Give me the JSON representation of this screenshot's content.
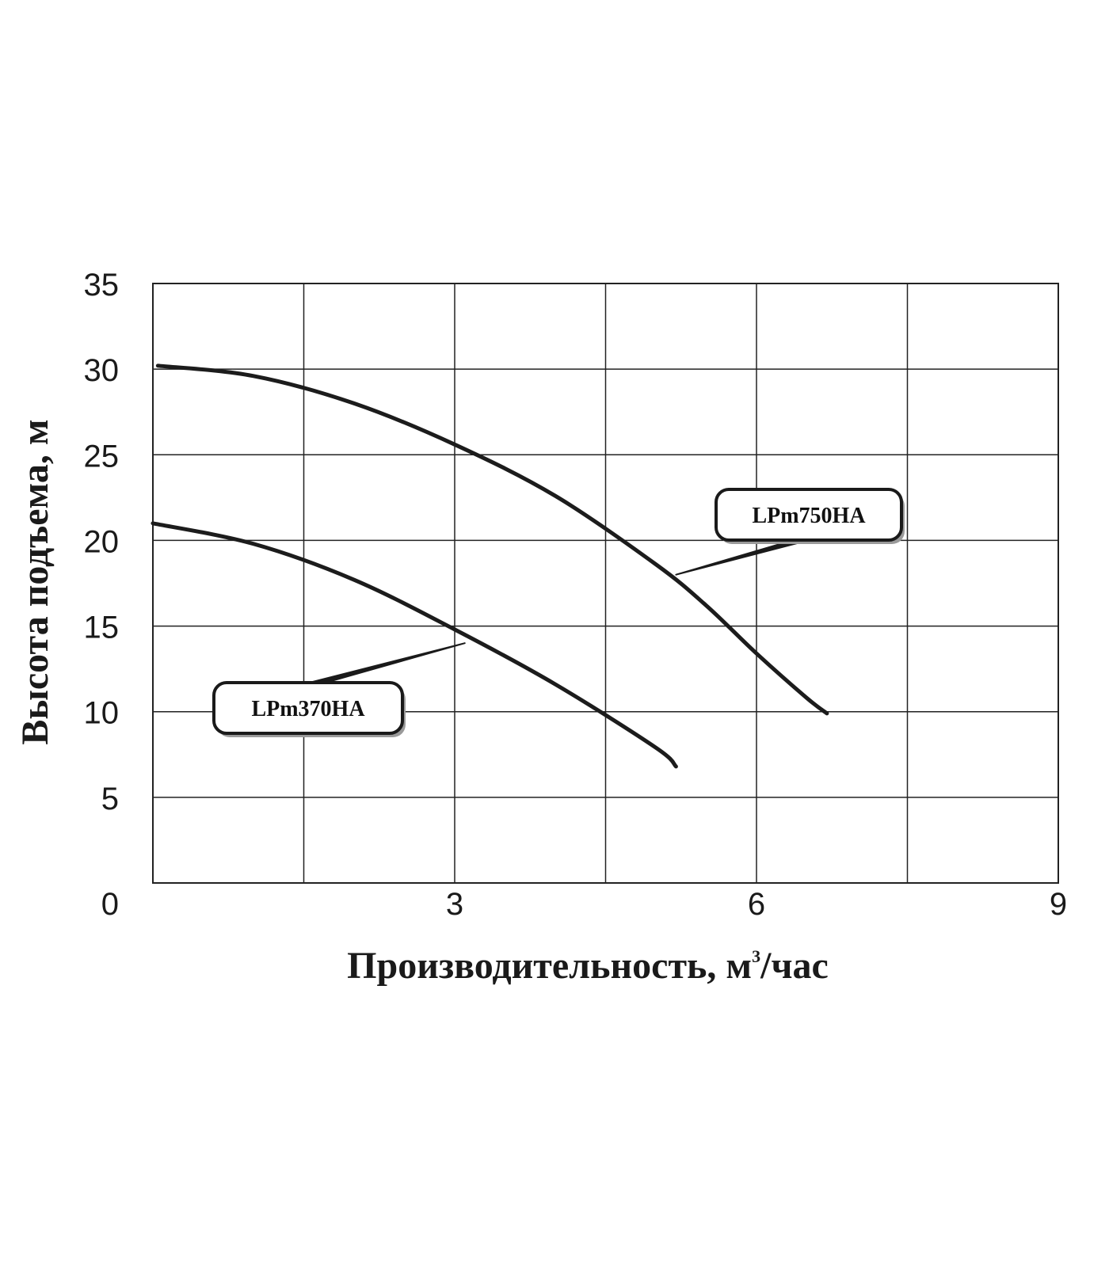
{
  "chart_data": {
    "type": "line",
    "xlabel": "Производительность, м",
    "xlabel_sup": "3",
    "xlabel_tail": "/час",
    "ylabel": "Высота подъема, м",
    "xlim": [
      0,
      9
    ],
    "ylim": [
      0,
      35
    ],
    "x_ticks": [
      0,
      3,
      6,
      9
    ],
    "x_tick_labels": [
      "0",
      "3",
      "6",
      "9"
    ],
    "y_ticks": [
      0,
      5,
      10,
      15,
      20,
      25,
      30,
      35
    ],
    "y_tick_labels": [
      "0",
      "5",
      "10",
      "15",
      "20",
      "25",
      "30",
      "35"
    ],
    "grid": true,
    "series": [
      {
        "name": "LPm750HA",
        "x": [
          0.05,
          1.0,
          2.0,
          3.0,
          4.0,
          5.0,
          5.5,
          6.0,
          6.5,
          6.7
        ],
        "y": [
          30.2,
          29.6,
          28.0,
          25.6,
          22.6,
          18.6,
          16.2,
          13.4,
          10.8,
          9.9
        ],
        "label_anchor_x": 5.2,
        "label_anchor_y": 18.0
      },
      {
        "name": "LPm370HA",
        "x": [
          0.0,
          1.0,
          2.0,
          3.0,
          4.0,
          5.0,
          5.2
        ],
        "y": [
          21.0,
          19.8,
          17.7,
          14.8,
          11.6,
          7.9,
          6.8
        ],
        "label_anchor_x": 3.1,
        "label_anchor_y": 14.0
      }
    ]
  }
}
